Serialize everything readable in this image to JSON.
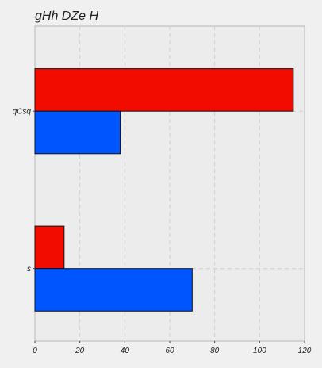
{
  "chart_data": {
    "type": "bar",
    "orientation": "horizontal",
    "title": "gHh DZe H",
    "categories": [
      "qCsq",
      "s"
    ],
    "series": [
      {
        "values": [
          115,
          13
        ],
        "color": "#f20c00"
      },
      {
        "values": [
          38,
          70
        ],
        "color": "#0055ff"
      }
    ],
    "xlim": [
      0,
      120
    ],
    "x_ticks": [
      "0",
      "20",
      "40",
      "60",
      "80",
      "100",
      "120"
    ],
    "grid": true,
    "legend": "none"
  }
}
